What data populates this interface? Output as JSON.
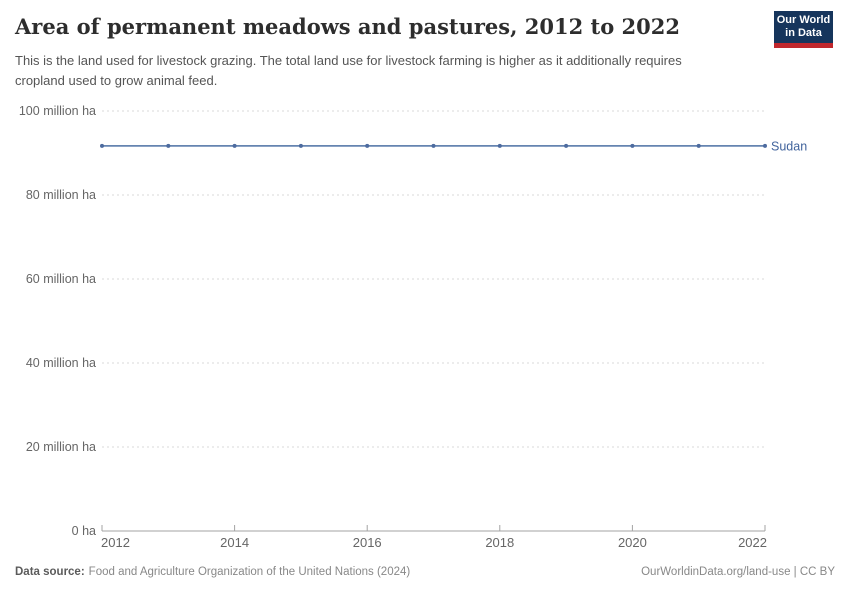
{
  "header": {
    "title": "Area of permanent meadows and pastures, 2012 to 2022",
    "subtitle": "This is the land used for livestock grazing. The total land use for livestock farming is higher as it additionally requires cropland used to grow animal feed.",
    "logo": {
      "line1": "Our World",
      "line2": "in Data"
    }
  },
  "chart_data": {
    "type": "line",
    "title": "Area of permanent meadows and pastures, 2012 to 2022",
    "x": [
      2012,
      2013,
      2014,
      2015,
      2016,
      2017,
      2018,
      2019,
      2020,
      2021,
      2022
    ],
    "series": [
      {
        "name": "Sudan",
        "values": [
          91.7,
          91.7,
          91.7,
          91.7,
          91.7,
          91.7,
          91.7,
          91.7,
          91.7,
          91.7,
          91.7
        ]
      }
    ],
    "unit": "million ha",
    "xlabel": "",
    "ylabel": "",
    "ylim": [
      0,
      100
    ],
    "xlim": [
      2012,
      2022
    ],
    "yticks": [
      {
        "value": 0,
        "label": "0 ha"
      },
      {
        "value": 20,
        "label": "20 million ha"
      },
      {
        "value": 40,
        "label": "40 million ha"
      },
      {
        "value": 60,
        "label": "60 million ha"
      },
      {
        "value": 80,
        "label": "80 million ha"
      },
      {
        "value": 100,
        "label": "100 million ha"
      }
    ],
    "xticks": [
      2012,
      2014,
      2016,
      2018,
      2020,
      2022
    ],
    "grid": "horizontal-dashed",
    "legend": "line-end-label"
  },
  "colors": {
    "line": "#6584b0",
    "point": "#4d6b9f",
    "series_label": "#41639c",
    "gridline": "#dadada",
    "axis": "#a3a3a3",
    "tick_label": "#666666",
    "logo_bg": "#16355c",
    "logo_bar": "#c0272d"
  },
  "footer": {
    "datasource_label": "Data source:",
    "datasource": "Food and Agriculture Organization of the United Nations (2024)",
    "rights": "OurWorldinData.org/land-use | CC BY"
  }
}
